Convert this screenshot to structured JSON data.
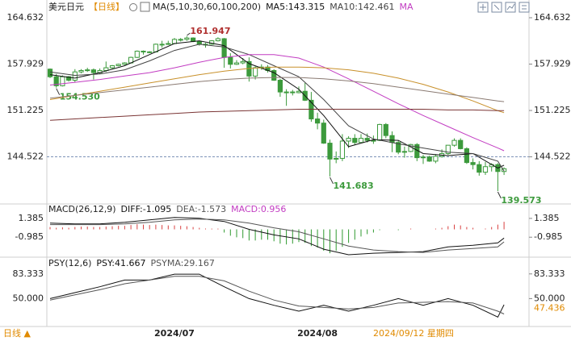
{
  "header": {
    "symbol": "美元日元",
    "period": "【日线】",
    "indicator": "MA(5,10,30,60,100,200)"
  },
  "footer": {
    "period_button": "日线 ▲",
    "cursor_date": "2024/09/12 星期四"
  },
  "chart_data": [
    {
      "type": "candlestick",
      "categories": [
        null,
        null,
        null,
        null,
        null,
        null,
        null,
        null,
        null,
        null,
        null,
        null,
        null,
        null,
        null,
        null,
        null,
        null,
        null,
        null,
        "2024/07",
        null,
        null,
        null,
        null,
        null,
        null,
        null,
        null,
        null,
        null,
        null,
        null,
        null,
        null,
        null,
        null,
        null,
        null,
        null,
        null,
        null,
        null,
        "2024/08",
        null,
        null,
        null,
        null,
        null,
        null,
        null,
        null,
        null,
        null,
        null,
        null,
        null,
        null,
        null,
        null,
        null,
        null,
        null,
        null,
        null,
        null,
        null,
        null,
        null,
        null,
        null,
        null,
        null,
        null
      ],
      "candle_color": "#3c9a3c",
      "candles": [
        [
          157.2,
          157.3,
          155.9,
          156.1
        ],
        [
          156.1,
          156.5,
          154.53,
          154.8
        ],
        [
          154.8,
          156.3,
          154.7,
          156.1
        ],
        [
          156.1,
          156.2,
          155.4,
          155.6
        ],
        [
          155.6,
          157.2,
          155.3,
          156.8
        ],
        [
          156.8,
          157.2,
          156.6,
          157.0
        ],
        [
          157.0,
          157.4,
          156.8,
          157.1
        ],
        [
          157.1,
          157.3,
          155.7,
          156.7
        ],
        [
          156.7,
          157.3,
          156.5,
          157.0
        ],
        [
          157.0,
          158.3,
          156.8,
          157.4
        ],
        [
          157.4,
          157.8,
          157.2,
          157.7
        ],
        [
          157.7,
          158.0,
          157.6,
          157.9
        ],
        [
          157.9,
          158.2,
          157.8,
          158.1
        ],
        [
          158.1,
          159.0,
          158.0,
          158.9
        ],
        [
          158.9,
          159.9,
          158.8,
          159.8
        ],
        [
          159.8,
          159.9,
          159.3,
          159.7
        ],
        [
          159.7,
          159.8,
          159.5,
          159.7
        ],
        [
          159.7,
          160.9,
          159.6,
          160.8
        ],
        [
          160.8,
          161.3,
          160.3,
          160.8
        ],
        [
          160.8,
          161.3,
          160.7,
          160.9
        ],
        [
          160.9,
          161.7,
          160.8,
          161.5
        ],
        [
          161.5,
          161.7,
          161.2,
          161.5
        ],
        [
          161.5,
          161.947,
          161.3,
          161.7
        ],
        [
          161.7,
          161.8,
          161.1,
          161.2
        ],
        [
          161.2,
          161.3,
          160.6,
          160.8
        ],
        [
          160.8,
          161.0,
          160.3,
          160.8
        ],
        [
          160.8,
          161.4,
          160.7,
          161.3
        ],
        [
          161.3,
          161.8,
          161.2,
          161.6
        ],
        [
          161.6,
          161.7,
          157.4,
          158.9
        ],
        [
          158.9,
          159.5,
          157.3,
          157.9
        ],
        [
          157.9,
          158.5,
          157.8,
          158.1
        ],
        [
          158.1,
          158.8,
          157.9,
          158.3
        ],
        [
          158.3,
          158.9,
          155.4,
          156.2
        ],
        [
          156.2,
          157.6,
          155.7,
          157.4
        ],
        [
          157.4,
          157.9,
          157.1,
          157.5
        ],
        [
          157.5,
          157.8,
          156.7,
          157.0
        ],
        [
          157.0,
          157.2,
          155.5,
          155.6
        ],
        [
          155.6,
          155.8,
          153.2,
          153.9
        ],
        [
          153.9,
          154.3,
          151.9,
          153.9
        ],
        [
          153.9,
          154.2,
          153.4,
          153.8
        ],
        [
          153.8,
          154.7,
          153.7,
          154.0
        ],
        [
          154.0,
          155.2,
          152.6,
          152.7
        ],
        [
          152.7,
          153.9,
          149.6,
          150.0
        ],
        [
          150.0,
          150.9,
          148.5,
          149.4
        ],
        [
          149.4,
          149.9,
          146.4,
          146.5
        ],
        [
          146.5,
          147.0,
          141.683,
          144.2
        ],
        [
          144.2,
          145.3,
          143.6,
          144.3
        ],
        [
          144.3,
          147.8,
          143.9,
          146.8
        ],
        [
          146.8,
          147.5,
          145.8,
          147.2
        ],
        [
          147.2,
          147.8,
          146.2,
          146.6
        ],
        [
          146.6,
          147.8,
          146.5,
          147.2
        ],
        [
          147.2,
          147.9,
          146.6,
          146.9
        ],
        [
          146.9,
          147.6,
          146.4,
          146.9
        ],
        [
          146.9,
          149.3,
          146.8,
          149.2
        ],
        [
          149.2,
          149.4,
          147.2,
          147.6
        ],
        [
          147.6,
          148.2,
          145.2,
          146.6
        ],
        [
          146.6,
          146.9,
          144.9,
          145.2
        ],
        [
          145.2,
          146.0,
          144.4,
          145.3
        ],
        [
          145.3,
          146.4,
          145.2,
          146.3
        ],
        [
          146.3,
          146.5,
          143.9,
          144.4
        ],
        [
          144.4,
          144.8,
          143.5,
          144.5
        ],
        [
          144.5,
          144.7,
          143.8,
          143.9
        ],
        [
          143.9,
          144.9,
          143.6,
          144.6
        ],
        [
          144.6,
          145.6,
          144.4,
          145.0
        ],
        [
          145.0,
          146.2,
          144.8,
          146.2
        ],
        [
          146.2,
          147.2,
          146.0,
          146.9
        ],
        [
          146.9,
          147.2,
          145.6,
          145.7
        ],
        [
          145.7,
          145.9,
          143.5,
          143.7
        ],
        [
          143.7,
          144.3,
          142.7,
          143.4
        ],
        [
          143.4,
          143.9,
          141.8,
          142.3
        ],
        [
          142.3,
          143.8,
          141.9,
          143.1
        ],
        [
          143.1,
          143.6,
          142.4,
          143.4
        ],
        [
          143.4,
          143.6,
          139.573,
          142.4
        ],
        [
          142.4,
          143.0,
          141.9,
          142.8
        ]
      ],
      "series": [
        {
          "name": "MA5:143.315",
          "color": "#111111",
          "x": [
            0,
            4,
            8,
            12,
            16,
            20,
            24,
            28,
            32,
            36,
            40,
            44,
            48,
            52,
            56,
            60,
            64,
            68,
            72,
            73
          ],
          "values": [
            156.4,
            155.9,
            156.7,
            157.7,
            159.3,
            160.9,
            161.3,
            160.6,
            158.0,
            156.7,
            154.3,
            150.5,
            146.0,
            147.0,
            146.9,
            145.0,
            144.7,
            145.0,
            142.9,
            143.315
          ]
        },
        {
          "name": "MA10:142.461",
          "color": "#444444",
          "x": [
            0,
            4,
            8,
            12,
            16,
            20,
            24,
            28,
            32,
            36,
            40,
            44,
            48,
            52,
            56,
            60,
            64,
            68,
            72,
            73
          ],
          "values": [
            156.8,
            156.3,
            156.5,
            157.1,
            158.4,
            159.9,
            160.8,
            160.4,
            159.3,
            157.7,
            156.1,
            152.8,
            149.0,
            147.1,
            146.4,
            145.8,
            145.2,
            145.0,
            143.9,
            142.461
          ]
        },
        {
          "name": "MA",
          "color": "#c23cc2",
          "x": [
            0,
            4,
            8,
            12,
            16,
            20,
            24,
            28,
            32,
            36,
            40,
            44,
            48,
            52,
            56,
            60,
            64,
            68,
            72,
            73
          ],
          "values": [
            154.9,
            155.3,
            155.7,
            156.2,
            156.7,
            157.4,
            158.2,
            158.9,
            159.3,
            159.3,
            158.8,
            157.5,
            155.8,
            154.0,
            152.2,
            150.5,
            148.9,
            147.3,
            145.8,
            145.4
          ]
        },
        {
          "color": "#c8902a",
          "x": [
            0,
            4,
            8,
            12,
            16,
            20,
            24,
            28,
            32,
            36,
            40,
            44,
            48,
            52,
            56,
            60,
            64,
            68,
            72,
            73
          ],
          "values": [
            152.8,
            153.4,
            154.0,
            154.6,
            155.2,
            155.8,
            156.4,
            156.9,
            157.3,
            157.5,
            157.5,
            157.4,
            157.1,
            156.6,
            155.9,
            155.0,
            153.9,
            152.6,
            151.2,
            150.9
          ]
        },
        {
          "color": "#8a7a72",
          "x": [
            0,
            4,
            8,
            12,
            16,
            20,
            24,
            28,
            32,
            36,
            40,
            44,
            48,
            52,
            56,
            60,
            64,
            68,
            72,
            73
          ],
          "values": [
            153.0,
            153.4,
            153.8,
            154.2,
            154.6,
            155.0,
            155.4,
            155.7,
            155.9,
            156.0,
            156.0,
            155.8,
            155.5,
            155.1,
            154.6,
            154.1,
            153.6,
            153.1,
            152.6,
            152.5
          ]
        },
        {
          "color": "#7a3434",
          "x": [
            0,
            4,
            8,
            12,
            16,
            20,
            24,
            28,
            32,
            36,
            40,
            44,
            48,
            52,
            56,
            60,
            64,
            68,
            72,
            73
          ],
          "values": [
            149.8,
            150.0,
            150.2,
            150.4,
            150.6,
            150.8,
            151.0,
            151.1,
            151.2,
            151.3,
            151.4,
            151.4,
            151.4,
            151.4,
            151.4,
            151.4,
            151.3,
            151.3,
            151.2,
            151.2
          ]
        }
      ],
      "annotations": [
        {
          "x": 22,
          "value": 161.947,
          "label": "161.947",
          "color": "#b0302f"
        },
        {
          "x": 1,
          "value": 154.53,
          "label": "154.530",
          "color": "#3c9a3c"
        },
        {
          "x": 45,
          "value": 141.683,
          "label": "141.683",
          "color": "#3c9a3c"
        },
        {
          "x": 72,
          "value": 139.573,
          "label": "139.573",
          "color": "#3c9a3c"
        }
      ],
      "price_line": 144.522,
      "ylim": [
        138.06,
        166.03
      ],
      "yticks": [
        164.632,
        157.929,
        151.225,
        144.522
      ]
    },
    {
      "type": "macd",
      "title": "MACD(26,12,9)",
      "histogram": {
        "name": "MACD:0.956",
        "color": "#c23cc2",
        "up_color": "#d84040",
        "down_color": "#2f9a2f",
        "values": [
          0.3,
          0.2,
          0.25,
          0.2,
          0.3,
          0.35,
          0.35,
          0.3,
          0.3,
          0.35,
          0.4,
          0.45,
          0.45,
          0.55,
          0.65,
          0.6,
          0.55,
          0.6,
          0.55,
          0.5,
          0.5,
          0.45,
          0.4,
          0.3,
          0.2,
          0.1,
          0.1,
          0.1,
          -0.4,
          -0.8,
          -1.0,
          -1.1,
          -1.4,
          -1.4,
          -1.3,
          -1.3,
          -1.5,
          -1.8,
          -1.9,
          -1.8,
          -1.6,
          -1.7,
          -2.1,
          -2.3,
          -2.7,
          -3.0,
          -2.7,
          -2.2,
          -1.7,
          -1.3,
          -0.9,
          -0.6,
          -0.4,
          -0.1,
          0,
          0,
          -0.1,
          0,
          0.1,
          0,
          0,
          0,
          0.1,
          0.2,
          0.4,
          0.6,
          0.5,
          0.3,
          0.2,
          0,
          0.1,
          0.3,
          0.6,
          0.956
        ]
      },
      "series": [
        {
          "name": "DIFF:-1.095",
          "color": "#111111",
          "x": [
            0,
            4,
            8,
            12,
            16,
            20,
            24,
            28,
            32,
            36,
            40,
            44,
            48,
            52,
            56,
            60,
            64,
            68,
            72,
            73
          ],
          "values": [
            0.8,
            0.7,
            0.7,
            0.9,
            1.2,
            1.5,
            1.4,
            1.0,
            0,
            -0.7,
            -1.2,
            -2.5,
            -3.2,
            -3.0,
            -2.9,
            -2.8,
            -2.2,
            -2.0,
            -1.7,
            -1.095
          ]
        },
        {
          "name": "DEA:-1.573",
          "color": "#555555",
          "x": [
            0,
            4,
            8,
            12,
            16,
            20,
            24,
            28,
            32,
            36,
            40,
            44,
            48,
            52,
            56,
            60,
            64,
            68,
            72,
            73
          ],
          "values": [
            0.6,
            0.6,
            0.6,
            0.7,
            0.9,
            1.2,
            1.3,
            1.2,
            0.8,
            0.2,
            -0.3,
            -1.2,
            -2.1,
            -2.6,
            -2.8,
            -2.9,
            -2.6,
            -2.4,
            -2.2,
            -1.573
          ]
        }
      ],
      "ylim": [
        -3.4,
        2.9
      ],
      "yticks": [
        1.385,
        -0.985
      ]
    },
    {
      "type": "line",
      "title": "PSY(12,6)",
      "series": [
        {
          "name": "PSY:41.667",
          "color": "#111111",
          "x": [
            0,
            4,
            8,
            12,
            16,
            20,
            24,
            28,
            32,
            36,
            40,
            44,
            48,
            52,
            56,
            60,
            64,
            68,
            72,
            73
          ],
          "values": [
            50,
            58,
            66,
            75,
            75,
            83,
            83,
            66,
            50,
            41,
            33,
            41,
            33,
            41,
            50,
            41,
            50,
            41,
            25,
            41.667
          ]
        },
        {
          "name": "PSYMA:29.167",
          "color": "#555555",
          "x": [
            0,
            4,
            8,
            12,
            16,
            20,
            24,
            28,
            32,
            36,
            40,
            44,
            48,
            52,
            56,
            60,
            64,
            68,
            72,
            73
          ],
          "values": [
            48,
            55,
            62,
            70,
            75,
            80,
            80,
            74,
            60,
            48,
            40,
            38,
            36,
            38,
            44,
            45,
            46,
            44,
            33,
            29.167
          ]
        }
      ],
      "marker": {
        "value": 47.436,
        "color": "#e08a00"
      },
      "ylim": [
        13.4,
        102.7
      ],
      "yticks": [
        83.333,
        {
          "value": 50,
          "label": "50.000"
        }
      ]
    }
  ]
}
